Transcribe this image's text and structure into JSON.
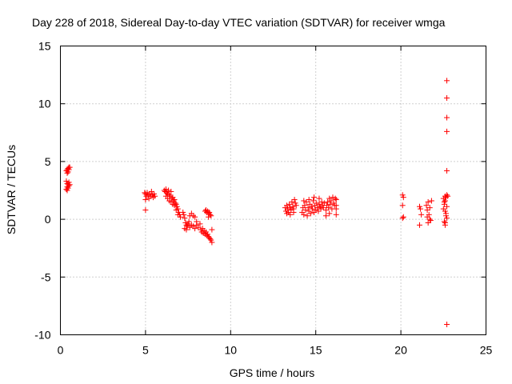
{
  "chart_data": {
    "type": "scatter",
    "title": "Day 228 of 2018, Sidereal Day-to-day VTEC variation (SDTVAR) for receiver wmga",
    "xlabel": "GPS time / hours",
    "ylabel": "SDTVAR / TECUs",
    "xlim": [
      0,
      25
    ],
    "ylim": [
      -10,
      15
    ],
    "xticks": [
      0,
      5,
      10,
      15,
      20,
      25
    ],
    "yticks": [
      -10,
      -5,
      0,
      5,
      10,
      15
    ],
    "xtick_labels": [
      "0",
      "5",
      "10",
      "15",
      "20",
      "25"
    ],
    "ytick_labels": [
      "-10",
      "-5",
      "0",
      "5",
      "10",
      "15"
    ],
    "grid": true,
    "marker": "plus",
    "color": "#ff0000",
    "series": [
      {
        "name": "wmga",
        "points": [
          [
            0.35,
            4.2
          ],
          [
            0.4,
            4.3
          ],
          [
            0.45,
            4.4
          ],
          [
            0.5,
            4.5
          ],
          [
            0.55,
            4.5
          ],
          [
            0.4,
            4.0
          ],
          [
            0.45,
            4.1
          ],
          [
            0.5,
            4.3
          ],
          [
            0.35,
            2.6
          ],
          [
            0.4,
            2.8
          ],
          [
            0.45,
            3.0
          ],
          [
            0.5,
            3.2
          ],
          [
            0.35,
            3.3
          ],
          [
            0.4,
            3.1
          ],
          [
            0.45,
            2.7
          ],
          [
            0.5,
            2.9
          ],
          [
            0.55,
            3.0
          ],
          [
            0.4,
            2.5
          ],
          [
            4.95,
            2.3
          ],
          [
            5.0,
            2.2
          ],
          [
            5.05,
            2.0
          ],
          [
            5.1,
            2.3
          ],
          [
            5.15,
            2.1
          ],
          [
            5.2,
            1.8
          ],
          [
            5.25,
            2.2
          ],
          [
            5.3,
            2.0
          ],
          [
            5.35,
            2.4
          ],
          [
            5.4,
            2.1
          ],
          [
            5.45,
            1.9
          ],
          [
            5.5,
            2.2
          ],
          [
            5.55,
            2.0
          ],
          [
            5.0,
            1.7
          ],
          [
            5.0,
            0.8
          ],
          [
            6.1,
            2.5
          ],
          [
            6.15,
            2.4
          ],
          [
            6.2,
            2.6
          ],
          [
            6.25,
            2.3
          ],
          [
            6.3,
            2.2
          ],
          [
            6.35,
            2.5
          ],
          [
            6.4,
            2.1
          ],
          [
            6.45,
            2.0
          ],
          [
            6.5,
            2.4
          ],
          [
            6.55,
            1.8
          ],
          [
            6.6,
            1.9
          ],
          [
            6.65,
            1.6
          ],
          [
            6.7,
            1.7
          ],
          [
            6.75,
            1.4
          ],
          [
            6.8,
            1.3
          ],
          [
            6.85,
            1.1
          ],
          [
            6.9,
            0.9
          ],
          [
            6.95,
            0.6
          ],
          [
            7.0,
            0.4
          ],
          [
            7.05,
            0.2
          ],
          [
            6.2,
            2.0
          ],
          [
            6.3,
            1.8
          ],
          [
            6.4,
            1.6
          ],
          [
            6.5,
            1.5
          ],
          [
            6.6,
            1.3
          ],
          [
            6.7,
            1.2
          ],
          [
            6.8,
            0.8
          ],
          [
            6.9,
            0.4
          ],
          [
            7.2,
            0.6
          ],
          [
            7.25,
            0.4
          ],
          [
            7.3,
            0.1
          ],
          [
            7.35,
            -0.3
          ],
          [
            7.4,
            -0.5
          ],
          [
            7.45,
            -0.6
          ],
          [
            7.5,
            -0.4
          ],
          [
            7.55,
            -0.2
          ],
          [
            7.6,
            0.3
          ],
          [
            7.7,
            0.5
          ],
          [
            7.8,
            0.3
          ],
          [
            7.9,
            0.2
          ],
          [
            7.3,
            -0.8
          ],
          [
            7.4,
            -0.9
          ],
          [
            7.6,
            -0.7
          ],
          [
            7.7,
            -0.5
          ],
          [
            7.8,
            -0.6
          ],
          [
            7.9,
            -0.8
          ],
          [
            8.0,
            -0.5
          ],
          [
            8.1,
            -0.7
          ],
          [
            8.2,
            -0.4
          ],
          [
            8.0,
            -0.2
          ],
          [
            8.25,
            -0.9
          ],
          [
            8.3,
            -1.1
          ],
          [
            8.35,
            -0.8
          ],
          [
            8.4,
            -1.2
          ],
          [
            8.45,
            -1.0
          ],
          [
            8.5,
            -1.3
          ],
          [
            8.55,
            -1.1
          ],
          [
            8.6,
            -1.4
          ],
          [
            8.65,
            -1.3
          ],
          [
            8.7,
            -1.5
          ],
          [
            8.75,
            -1.6
          ],
          [
            8.8,
            -1.7
          ],
          [
            8.85,
            -1.8
          ],
          [
            8.9,
            -2.0
          ],
          [
            8.9,
            -0.9
          ],
          [
            8.5,
            0.7
          ],
          [
            8.55,
            0.8
          ],
          [
            8.6,
            0.6
          ],
          [
            8.65,
            0.7
          ],
          [
            8.7,
            0.5
          ],
          [
            8.75,
            0.6
          ],
          [
            8.8,
            0.4
          ],
          [
            8.85,
            0.3
          ],
          [
            8.7,
            0.2
          ],
          [
            13.2,
            1.0
          ],
          [
            13.25,
            0.7
          ],
          [
            13.3,
            1.2
          ],
          [
            13.35,
            0.9
          ],
          [
            13.4,
            0.6
          ],
          [
            13.45,
            1.3
          ],
          [
            13.5,
            1.0
          ],
          [
            13.55,
            0.8
          ],
          [
            13.6,
            1.5
          ],
          [
            13.65,
            1.1
          ],
          [
            13.7,
            0.9
          ],
          [
            13.75,
            1.7
          ],
          [
            13.8,
            1.4
          ],
          [
            13.85,
            1.2
          ],
          [
            13.3,
            0.5
          ],
          [
            13.5,
            0.4
          ],
          [
            13.7,
            0.6
          ],
          [
            14.2,
            0.6
          ],
          [
            14.25,
            1.0
          ],
          [
            14.3,
            0.4
          ],
          [
            14.35,
            1.2
          ],
          [
            14.4,
            0.8
          ],
          [
            14.45,
            1.5
          ],
          [
            14.5,
            0.3
          ],
          [
            14.55,
            1.0
          ],
          [
            14.6,
            0.7
          ],
          [
            14.65,
            1.3
          ],
          [
            14.7,
            0.5
          ],
          [
            14.75,
            1.1
          ],
          [
            14.8,
            0.9
          ],
          [
            14.85,
            1.6
          ],
          [
            14.9,
            0.6
          ],
          [
            14.95,
            1.2
          ],
          [
            15.0,
            0.8
          ],
          [
            15.05,
            1.4
          ],
          [
            15.1,
            1.0
          ],
          [
            15.15,
            0.7
          ],
          [
            15.2,
            1.3
          ],
          [
            15.25,
            1.1
          ],
          [
            15.3,
            0.9
          ],
          [
            15.35,
            1.5
          ],
          [
            15.4,
            1.2
          ],
          [
            15.45,
            1.0
          ],
          [
            15.5,
            1.4
          ],
          [
            14.3,
            1.6
          ],
          [
            14.6,
            1.7
          ],
          [
            14.9,
            1.9
          ],
          [
            15.2,
            1.8
          ],
          [
            15.6,
            0.8
          ],
          [
            15.65,
            1.2
          ],
          [
            15.7,
            1.5
          ],
          [
            15.75,
            1.0
          ],
          [
            15.8,
            1.8
          ],
          [
            15.85,
            1.3
          ],
          [
            15.9,
            1.6
          ],
          [
            15.95,
            0.9
          ],
          [
            16.0,
            1.9
          ],
          [
            16.05,
            1.4
          ],
          [
            16.1,
            1.2
          ],
          [
            16.15,
            1.8
          ],
          [
            16.2,
            1.7
          ],
          [
            15.8,
            0.5
          ],
          [
            15.6,
            0.3
          ],
          [
            16.2,
            0.4
          ],
          [
            16.2,
            0.9
          ],
          [
            16.2,
            1.2
          ],
          [
            20.1,
            2.1
          ],
          [
            20.15,
            1.9
          ],
          [
            20.1,
            1.2
          ],
          [
            20.15,
            0.2
          ],
          [
            20.1,
            0.1
          ],
          [
            21.1,
            1.1
          ],
          [
            21.15,
            0.9
          ],
          [
            21.2,
            0.4
          ],
          [
            21.1,
            -0.5
          ],
          [
            21.5,
            1.2
          ],
          [
            21.55,
            0.8
          ],
          [
            21.6,
            1.5
          ],
          [
            21.65,
            0.4
          ],
          [
            21.7,
            1.0
          ],
          [
            21.75,
            -0.1
          ],
          [
            21.6,
            -0.3
          ],
          [
            21.7,
            0.0
          ],
          [
            21.8,
            1.6
          ],
          [
            21.55,
            0.2
          ],
          [
            22.5,
            1.8
          ],
          [
            22.55,
            1.5
          ],
          [
            22.6,
            2.0
          ],
          [
            22.65,
            1.9
          ],
          [
            22.7,
            2.1
          ],
          [
            22.75,
            2.0
          ],
          [
            22.6,
            0.7
          ],
          [
            22.65,
            0.5
          ],
          [
            22.7,
            0.1
          ],
          [
            22.55,
            -0.2
          ],
          [
            22.6,
            -0.3
          ],
          [
            22.5,
            0.9
          ],
          [
            22.6,
            -0.5
          ],
          [
            22.65,
            0.3
          ],
          [
            22.7,
            1.1
          ],
          [
            22.55,
            1.3
          ],
          [
            22.6,
            1.6
          ],
          [
            22.7,
            12.0
          ],
          [
            22.7,
            10.5
          ],
          [
            22.7,
            8.8
          ],
          [
            22.7,
            7.6
          ],
          [
            22.7,
            4.2
          ],
          [
            22.7,
            -9.1
          ]
        ]
      }
    ]
  }
}
